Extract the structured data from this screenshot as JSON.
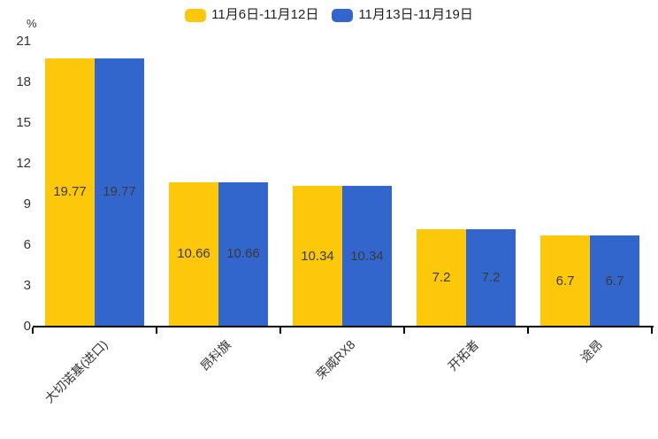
{
  "chart": {
    "unit": "%"
  },
  "chart_data": {
    "type": "bar",
    "title": "",
    "categories": [
      "大切诺基(进口)",
      "昂科旗",
      "荣威RX8",
      "开拓者",
      "途昂"
    ],
    "series": [
      {
        "name": "11月6日-11月12日",
        "color": "#FDC70A",
        "values": [
          19.77,
          10.66,
          10.34,
          7.2,
          6.7
        ]
      },
      {
        "name": "11月13日-11月19日",
        "color": "#3366CC",
        "values": [
          19.77,
          10.66,
          10.34,
          7.2,
          6.7
        ]
      }
    ],
    "xlabel": "",
    "ylabel": "%",
    "ylim": [
      0,
      21
    ],
    "yticks": [
      0,
      3,
      6,
      9,
      12,
      15,
      18,
      21
    ],
    "grid": false,
    "legend_position": "top",
    "value_labels": true,
    "value_label_color": "#3a3a3a",
    "axis_color": "#000000"
  }
}
